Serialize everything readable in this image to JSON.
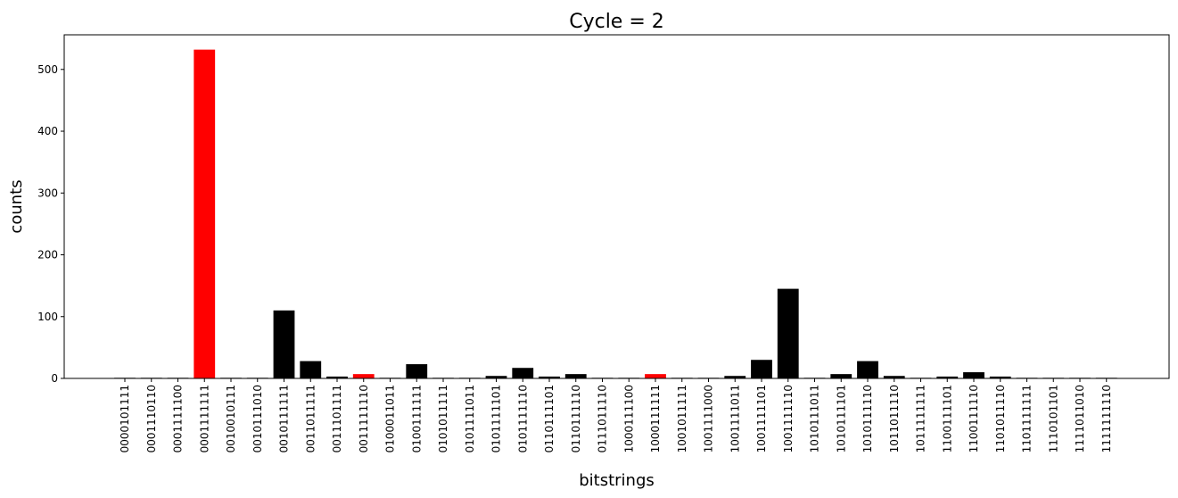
{
  "chart_data": {
    "type": "bar",
    "title": "Cycle  = 2",
    "xlabel": "bitstrings",
    "ylabel": "counts",
    "ylim": [
      0,
      556
    ],
    "yticks": [
      0,
      100,
      200,
      300,
      400,
      500
    ],
    "grid": false,
    "colors": {
      "highlight": "#ff0000",
      "default": "#000000"
    },
    "categories": [
      "0000101111",
      "0001110110",
      "0001111100",
      "0001111111",
      "0010010111",
      "0010111010",
      "0010111111",
      "0011011111",
      "0011101111",
      "0011111110",
      "0100011011",
      "0100111111",
      "0101011111",
      "0101111011",
      "0101111101",
      "0101111110",
      "0110111101",
      "0110111110",
      "0111011110",
      "1000111100",
      "1000111111",
      "1001011111",
      "1001111000",
      "1001111011",
      "1001111101",
      "1001111110",
      "1010111011",
      "1010111101",
      "1010111110",
      "1011011110",
      "1011111111",
      "1100111101",
      "1100111110",
      "1101011110",
      "1101111111",
      "1110101101",
      "1111011010",
      "1111111110"
    ],
    "values": [
      1,
      1,
      1,
      532,
      1,
      1,
      110,
      28,
      3,
      7,
      1,
      23,
      1,
      1,
      4,
      17,
      3,
      7,
      1,
      1,
      7,
      1,
      1,
      4,
      30,
      145,
      1,
      7,
      28,
      4,
      1,
      3,
      10,
      3,
      1,
      1,
      1,
      1
    ],
    "highlighted": [
      false,
      false,
      false,
      true,
      false,
      false,
      false,
      false,
      false,
      true,
      false,
      false,
      false,
      false,
      false,
      false,
      false,
      false,
      false,
      false,
      true,
      false,
      false,
      false,
      false,
      false,
      false,
      false,
      false,
      false,
      false,
      false,
      false,
      false,
      false,
      false,
      false,
      false
    ]
  }
}
